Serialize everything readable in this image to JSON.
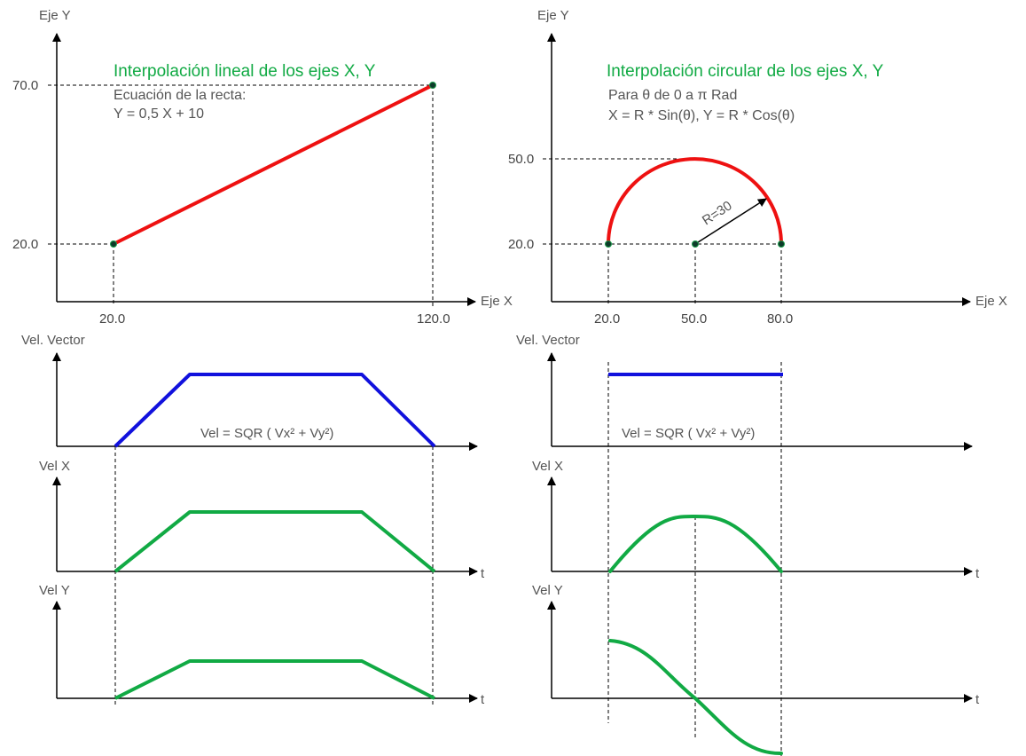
{
  "colors": {
    "path": "#ee1111",
    "vector": "#1111dd",
    "axis_velocity": "#11aa44",
    "title": "#11aa44",
    "point": "#0d3b2a"
  },
  "left_xy": {
    "y_axis_label": "Eje Y",
    "x_axis_label": "Eje X",
    "title": "Interpolación lineal de los ejes X, Y",
    "eq_line1": "Ecuación de la recta:",
    "eq_line2": "Y = 0,5 X + 10",
    "x_ticks": [
      "20.0",
      "120.0"
    ],
    "y_ticks": [
      "70.0",
      "20.0"
    ]
  },
  "right_xy": {
    "y_axis_label": "Eje Y",
    "x_axis_label": "Eje X",
    "title": "Interpolación circular de los ejes X, Y",
    "note_line1": "Para θ de 0 a π Rad",
    "note_line2": "X = R * Sin(θ), Y = R * Cos(θ)",
    "radius_label": "R=30",
    "x_ticks": [
      "20.0",
      "50.0",
      "80.0"
    ],
    "y_ticks": [
      "50.0",
      "20.0"
    ]
  },
  "left_velocity": {
    "vector_label": "Vel. Vector",
    "vector_formula": "Vel = SQR ( Vx² + Vy²)",
    "velx_label": "Vel X",
    "vely_label": "Vel Y",
    "t_label": "t"
  },
  "right_velocity": {
    "vector_label": "Vel. Vector",
    "vector_formula": "Vel = SQR ( Vx² + Vy²)",
    "velx_label": "Vel X",
    "vely_label": "Vel Y",
    "t_label": "t"
  }
}
